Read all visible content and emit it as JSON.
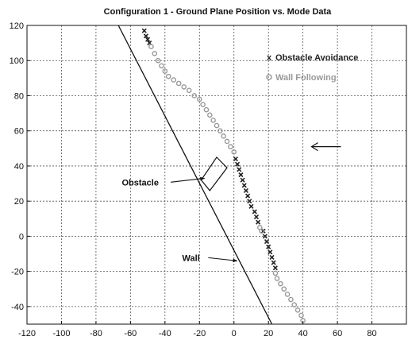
{
  "chart_data": {
    "type": "scatter",
    "title": "Configuration 1 - Ground Plane Position vs. Mode Data",
    "xlabel": "",
    "ylabel": "",
    "xlim": [
      -120,
      100
    ],
    "ylim": [
      -50,
      120
    ],
    "x_ticks": [
      -120,
      -100,
      -80,
      -60,
      -40,
      -20,
      0,
      20,
      40,
      60,
      80
    ],
    "y_ticks": [
      -40,
      -20,
      0,
      20,
      40,
      60,
      80,
      100,
      120
    ],
    "grid": true,
    "legend": {
      "placement": "top-right",
      "entries": [
        {
          "marker": "x",
          "label": "Obstacle Avoidance",
          "color": "#222222"
        },
        {
          "marker": "o",
          "label": "Wall Following",
          "color": "#999999"
        }
      ]
    },
    "series": [
      {
        "name": "Obstacle Avoidance",
        "marker": "x",
        "color": "#222222",
        "points": [
          [
            -52,
            117
          ],
          [
            -51,
            114
          ],
          [
            -50,
            112
          ],
          [
            -49,
            110
          ],
          [
            1,
            44
          ],
          [
            2,
            41
          ],
          [
            3,
            38
          ],
          [
            4,
            35
          ],
          [
            5,
            32
          ],
          [
            6,
            29
          ],
          [
            7,
            26
          ],
          [
            8,
            23
          ],
          [
            9,
            20
          ],
          [
            10,
            17
          ],
          [
            12,
            14
          ],
          [
            13,
            11
          ],
          [
            14,
            8
          ],
          [
            17,
            3
          ],
          [
            18,
            0
          ],
          [
            19,
            -3
          ],
          [
            20,
            -6
          ],
          [
            21,
            -9
          ],
          [
            22,
            -12
          ],
          [
            23,
            -15
          ],
          [
            24,
            -18
          ]
        ]
      },
      {
        "name": "Wall Following",
        "marker": "o",
        "color": "#999999",
        "points": [
          [
            -48,
            108
          ],
          [
            -46,
            104
          ],
          [
            -44,
            100
          ],
          [
            -42,
            97
          ],
          [
            -40,
            94
          ],
          [
            -38,
            91
          ],
          [
            -35,
            89
          ],
          [
            -32,
            87
          ],
          [
            -29,
            85
          ],
          [
            -26,
            83
          ],
          [
            -23,
            80
          ],
          [
            -20,
            78
          ],
          [
            -18,
            75
          ],
          [
            -16,
            72
          ],
          [
            -14,
            69
          ],
          [
            -12,
            66
          ],
          [
            -10,
            63
          ],
          [
            -8,
            60
          ],
          [
            -6,
            57
          ],
          [
            -4,
            54
          ],
          [
            -2,
            51
          ],
          [
            0,
            48
          ],
          [
            15,
            5
          ],
          [
            16,
            3
          ],
          [
            24,
            -21
          ],
          [
            25,
            -24
          ],
          [
            27,
            -27
          ],
          [
            29,
            -30
          ],
          [
            31,
            -33
          ],
          [
            33,
            -36
          ],
          [
            35,
            -39
          ],
          [
            37,
            -42
          ],
          [
            39,
            -45
          ],
          [
            40,
            -48
          ]
        ]
      }
    ],
    "wall_line": [
      [
        -67,
        120
      ],
      [
        22,
        -50
      ]
    ],
    "obstacle_box": [
      [
        -19,
        32
      ],
      [
        -10,
        45
      ],
      [
        -4,
        39
      ],
      [
        -14,
        26
      ]
    ],
    "annotations": [
      {
        "label": "Obstacle",
        "text_at": [
          -65,
          29
        ],
        "arrow_to": [
          -17,
          33
        ]
      },
      {
        "label": "Wall",
        "text_at": [
          -30,
          -14
        ],
        "arrow_to": [
          2,
          -14
        ]
      }
    ],
    "extra_arrow": {
      "from": [
        62,
        51
      ],
      "to": [
        45,
        51
      ]
    }
  }
}
